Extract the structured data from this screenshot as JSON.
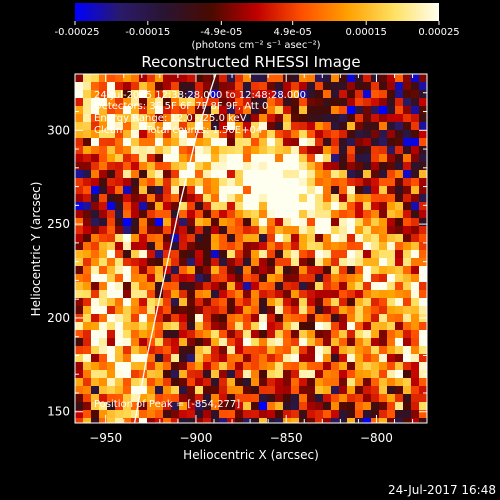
{
  "figure": {
    "title": "Reconstructed RHESSI Image",
    "footer_timestamp": "24-Jul-2017 16:48"
  },
  "colorbar": {
    "min": -0.00025,
    "max": 0.00025,
    "ticks": [
      -0.00025,
      -0.00015,
      -4.9e-05,
      4.9e-05,
      0.00015,
      0.00025
    ],
    "tick_labels": [
      "-0.00025",
      "-0.00015",
      "-4.9e-05",
      "4.9e-05",
      "0.00015",
      "0.00025"
    ],
    "unit_label": "(photons cm⁻² s⁻¹ asec⁻²)",
    "colormap": [
      "#0000ff",
      "#2a1a6a",
      "#2a1430",
      "#4a0a00",
      "#c00000",
      "#ff5000",
      "#ffa000",
      "#ffe060",
      "#fffff0"
    ]
  },
  "annotations": {
    "time_range": "24-Jul-2015 12:38:28.000 to 12:48:28.000",
    "detectors": "Detectors: 3F 5F 6F 7F 8F 9F, Att 0",
    "energy_range": "Energy Range: 12.0 - 25.0 keV",
    "clean_label": "Clean",
    "total_counts": "Total counts: 1.50E+04",
    "peak_position": "Position of Peak = [-854,277]"
  },
  "chart_data": {
    "type": "heatmap",
    "title": "Reconstructed RHESSI Image",
    "xlabel": "Heliocentric X (arcsec)",
    "ylabel": "Heliocentric Y (arcsec)",
    "xlim": [
      -967,
      -772
    ],
    "ylim": [
      144,
      330
    ],
    "xticks": [
      -950,
      -900,
      -850,
      -800
    ],
    "yticks": [
      150,
      200,
      250,
      300
    ],
    "xtick_labels": [
      "−950",
      "−900",
      "−850",
      "−800"
    ],
    "ytick_labels": [
      "150",
      "200",
      "250",
      "300"
    ],
    "grid": false,
    "peak": [
      -854,
      277
    ],
    "limb_curve": {
      "x": [
        -934,
        -927,
        -918,
        -909,
        -899,
        -889
      ],
      "y": [
        144,
        180,
        220,
        260,
        300,
        330
      ]
    }
  }
}
